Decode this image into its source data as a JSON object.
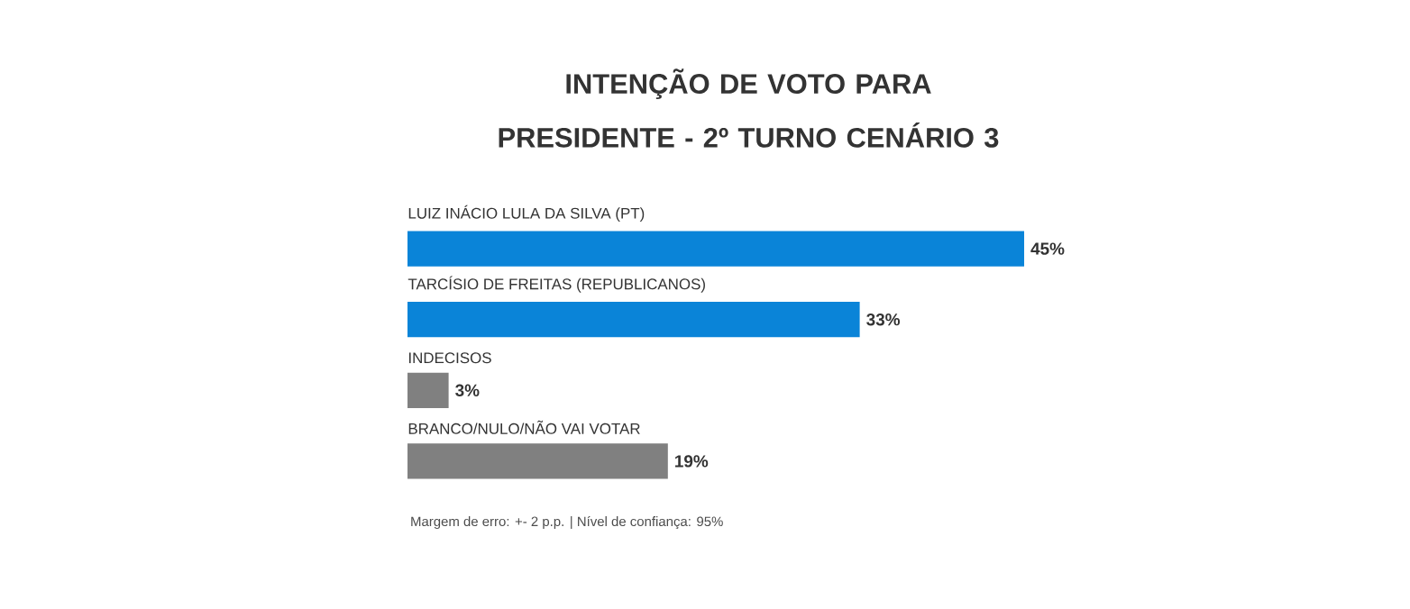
{
  "chart_data": {
    "type": "bar",
    "orientation": "horizontal",
    "title": "INTENÇÃO DE VOTO PARA PRESIDENTE - 2º TURNO CENÁRIO 3",
    "categories": [
      "LUIZ INÁCIO LULA DA SILVA (PT)",
      "TARCÍSIO DE FREITAS (REPUBLICANOS)",
      "INDECISOS",
      "BRANCO/NULO/NÃO VAI VOTAR"
    ],
    "values": [
      45,
      33,
      3,
      19
    ],
    "colors": [
      "#0a84d8",
      "#0a84d8",
      "#808080",
      "#808080"
    ],
    "value_labels": [
      "45%",
      "33%",
      "3%",
      "19%"
    ],
    "annotations": [
      "Margem de erro: +- 2 p.p. | Nível de confiança: 95%"
    ]
  }
}
